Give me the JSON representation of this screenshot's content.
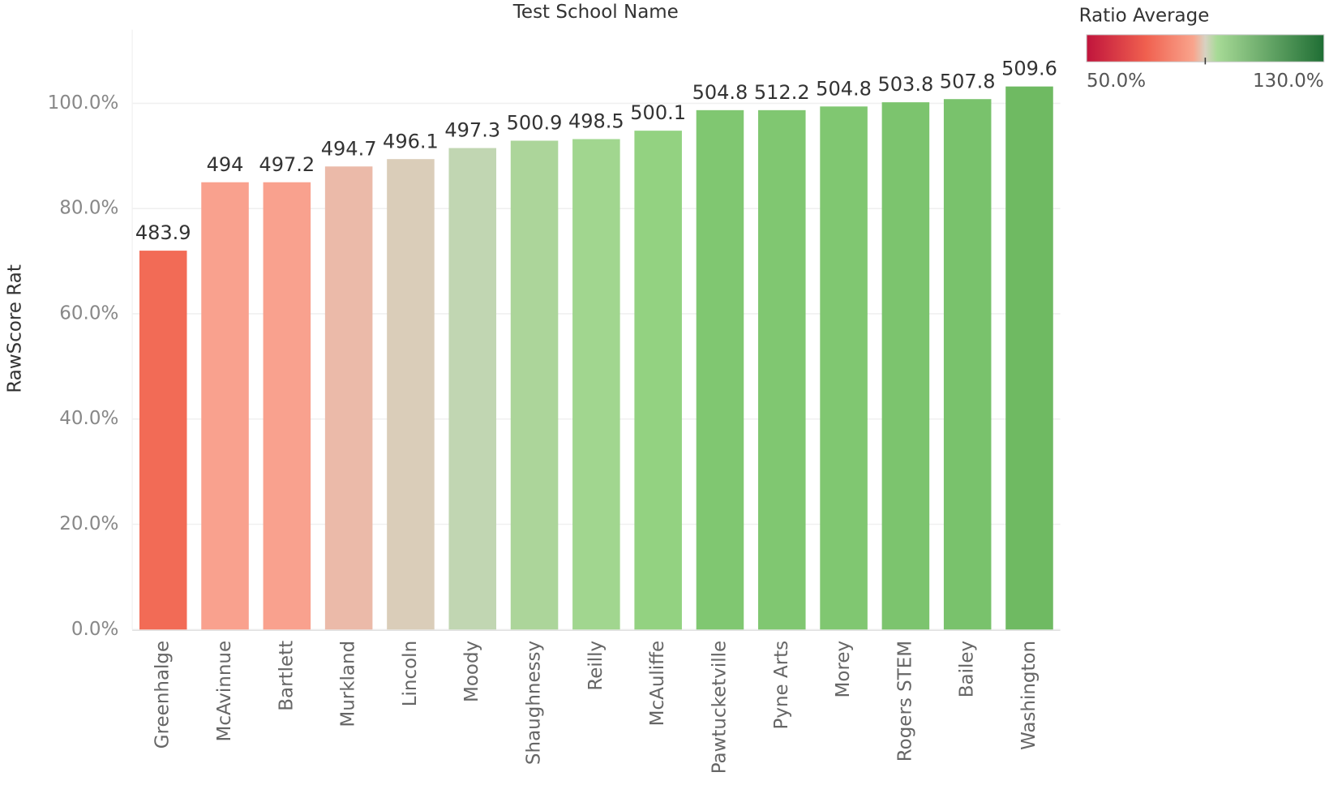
{
  "chart_data": {
    "type": "bar",
    "title": "Test School Name",
    "ylabel": "RawScore Rat",
    "categories": [
      "Greenhalge",
      "McAvinnue",
      "Bartlett",
      "Murkland",
      "Lincoln",
      "Moody",
      "Shaughnessy",
      "Reilly",
      "McAuliffe",
      "Pawtucketville",
      "Pyne Arts",
      "Morey",
      "Rogers STEM",
      "Bailey",
      "Washington"
    ],
    "values": [
      72,
      85,
      85,
      88,
      89.4,
      91.5,
      92.9,
      93.2,
      94.8,
      98.7,
      98.7,
      99.4,
      100.2,
      100.8,
      103.2
    ],
    "data_labels": [
      483.9,
      494.0,
      497.2,
      494.7,
      496.1,
      497.3,
      500.9,
      498.5,
      500.1,
      504.8,
      512.2,
      504.8,
      503.8,
      507.8,
      509.6
    ],
    "colors": [
      "#f26b56",
      "#f9a18e",
      "#f9a18e",
      "#ebbaa9",
      "#dacdb9",
      "#c1d6b2",
      "#acd59a",
      "#a1d68f",
      "#93d281",
      "#80c771",
      "#80c771",
      "#80c771",
      "#7cc46e",
      "#79c26c",
      "#6fba62"
    ],
    "ylim": [
      0,
      114
    ],
    "yticks": [
      {
        "value": 0,
        "label": "0.0%"
      },
      {
        "value": 20,
        "label": "20.0%"
      },
      {
        "value": 40,
        "label": "40.0%"
      },
      {
        "value": 60,
        "label": "60.0%"
      },
      {
        "value": 80,
        "label": "80.0%"
      },
      {
        "value": 100,
        "label": "100.0%"
      }
    ],
    "grid": true,
    "legend": {
      "title": "Ratio Average",
      "range": [
        50,
        130
      ],
      "ticks": [
        {
          "value": 50,
          "label": "50.0%"
        },
        {
          "value": 130,
          "label": "130.0%"
        }
      ]
    }
  }
}
